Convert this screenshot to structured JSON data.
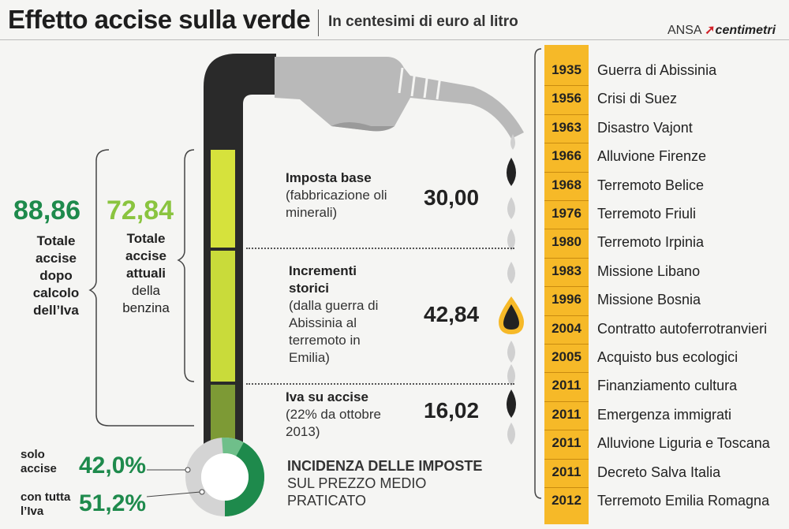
{
  "header": {
    "title": "Effetto accise sulla verde",
    "subtitle": "In centesimi di euro al litro",
    "source_prefix": "ANSA",
    "source_brand": "centimetri"
  },
  "totals": {
    "after_vat_value": "88,86",
    "after_vat_label": "Totale accise dopo calcolo dell’Iva",
    "current_value": "72,84",
    "current_label_bold": "Totale accise attuali",
    "current_label_rest": "della benzina"
  },
  "segments": [
    {
      "heading": "Imposta base",
      "detail": "(fabbricazione oli minerali)",
      "value": "30,00",
      "color": "#d6e23c"
    },
    {
      "heading": "Incrementi storici",
      "detail": "(dalla guerra di Abissinia al terremoto in Emilia)",
      "value": "42,84",
      "color": "#c9db3a"
    },
    {
      "heading": "Iva su accise",
      "detail": "(22% da ottobre 2013)",
      "value": "16,02",
      "color": "#7d9a35"
    }
  ],
  "incidence": {
    "heading": "INCIDENZA DELLE IMPOSTE",
    "line2": "SUL PREZZO MEDIO",
    "line3": "PRATICATO",
    "solo_label": "solo accise",
    "solo_value": "42,0%",
    "full_label": "con tutta l’Iva",
    "full_value": "51,2%",
    "solo_fraction": 0.42,
    "full_fraction": 0.512
  },
  "timeline": [
    {
      "year": "1935",
      "event": "Guerra di Abissinia"
    },
    {
      "year": "1956",
      "event": "Crisi di Suez"
    },
    {
      "year": "1963",
      "event": "Disastro Vajont"
    },
    {
      "year": "1966",
      "event": "Alluvione Firenze"
    },
    {
      "year": "1968",
      "event": "Terremoto Belice"
    },
    {
      "year": "1976",
      "event": "Terremoto Friuli"
    },
    {
      "year": "1980",
      "event": "Terremoto Irpinia"
    },
    {
      "year": "1983",
      "event": "Missione Libano"
    },
    {
      "year": "1996",
      "event": "Missione Bosnia"
    },
    {
      "year": "2004",
      "event": "Contratto autoferrotranvieri"
    },
    {
      "year": "2005",
      "event": "Acquisto bus ecologici"
    },
    {
      "year": "2011",
      "event": "Finanziamento cultura"
    },
    {
      "year": "2011",
      "event": "Emergenza immigrati"
    },
    {
      "year": "2011",
      "event": "Alluvione Liguria e Toscana"
    },
    {
      "year": "2011",
      "event": "Decreto Salva Italia"
    },
    {
      "year": "2012",
      "event": "Terremoto Emilia Romagna"
    }
  ],
  "colors": {
    "dark_green": "#1e8a4c",
    "light_green": "#8ac43f",
    "timeline_yellow": "#f6b928",
    "hose_dark": "#2a2a2a",
    "nozzle_grey": "#b9b9b9"
  }
}
